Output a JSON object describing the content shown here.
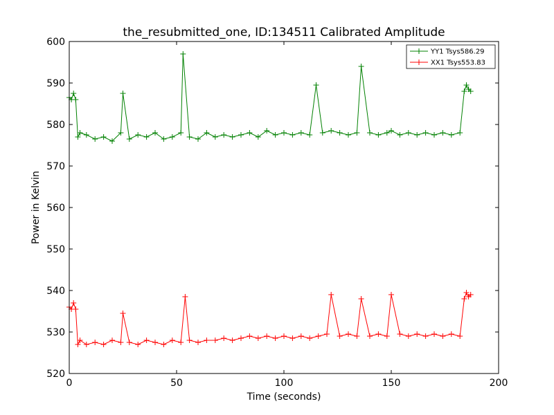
{
  "chart_data": {
    "type": "line",
    "title": "the_resubmitted_one, ID:134511 Calibrated Amplitude",
    "xlabel": "Time (seconds)",
    "ylabel": "Power in Kelvin",
    "xlim": [
      0,
      200
    ],
    "ylim": [
      520,
      600
    ],
    "xticks": [
      "0",
      "50",
      "100",
      "150",
      "200"
    ],
    "yticks": [
      "520",
      "530",
      "540",
      "550",
      "560",
      "570",
      "580",
      "590",
      "600"
    ],
    "xtick_values": [
      0,
      50,
      100,
      150,
      200
    ],
    "ytick_values": [
      520,
      530,
      540,
      550,
      560,
      570,
      580,
      590,
      600
    ],
    "grid": false,
    "legend_position": "top-right",
    "marker": "+",
    "series": [
      {
        "name": "YY1 Tsys586.29",
        "color": "#008000",
        "x": [
          0,
          1,
          2,
          3,
          4,
          5,
          8,
          12,
          16,
          20,
          24,
          25,
          28,
          32,
          36,
          40,
          44,
          48,
          52,
          53,
          56,
          60,
          64,
          68,
          72,
          76,
          80,
          84,
          88,
          92,
          96,
          100,
          104,
          108,
          112,
          115,
          118,
          122,
          126,
          130,
          134,
          136,
          140,
          144,
          148,
          150,
          154,
          158,
          162,
          166,
          170,
          174,
          178,
          182,
          184,
          185,
          186,
          187
        ],
        "y": [
          586.5,
          586,
          587.5,
          586,
          577,
          578,
          577.5,
          576.5,
          577,
          576,
          578,
          587.5,
          576.5,
          577.5,
          577,
          578,
          576.5,
          577,
          578,
          597,
          577,
          576.5,
          578,
          577,
          577.5,
          577,
          577.5,
          578,
          577,
          578.5,
          577.5,
          578,
          577.5,
          578,
          577.5,
          589.5,
          578,
          578.5,
          578,
          577.5,
          578,
          594,
          578,
          577.5,
          578,
          578.5,
          577.5,
          578,
          577.5,
          578,
          577.5,
          578,
          577.5,
          578,
          588,
          589.5,
          588.5,
          588
        ]
      },
      {
        "name": "XX1 Tsys553.83",
        "color": "#ff0000",
        "x": [
          0,
          1,
          2,
          3,
          4,
          5,
          8,
          12,
          16,
          20,
          24,
          25,
          28,
          32,
          36,
          40,
          44,
          48,
          52,
          54,
          56,
          60,
          64,
          68,
          72,
          76,
          80,
          84,
          88,
          92,
          96,
          100,
          104,
          108,
          112,
          116,
          120,
          122,
          126,
          130,
          134,
          136,
          140,
          144,
          148,
          150,
          154,
          158,
          162,
          166,
          170,
          174,
          178,
          182,
          184,
          185,
          186,
          187
        ],
        "y": [
          536,
          535.5,
          537,
          535.5,
          527,
          528,
          527,
          527.5,
          527,
          528,
          527.5,
          534.5,
          527.5,
          527,
          528,
          527.5,
          527,
          528,
          527.5,
          538.5,
          528,
          527.5,
          528,
          528,
          528.5,
          528,
          528.5,
          529,
          528.5,
          529,
          528.5,
          529,
          528.5,
          529,
          528.5,
          529,
          529.5,
          539,
          529,
          529.5,
          529,
          538,
          529,
          529.5,
          529,
          539,
          529.5,
          529,
          529.5,
          529,
          529.5,
          529,
          529.5,
          529,
          538,
          539.5,
          538.5,
          539
        ]
      }
    ]
  }
}
